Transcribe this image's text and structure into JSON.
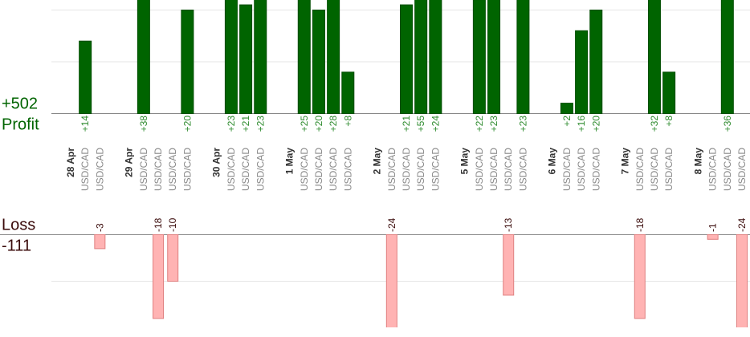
{
  "profit": {
    "label": "Profit",
    "total": 502,
    "total_label": "+502"
  },
  "loss": {
    "label": "Loss",
    "total": -111,
    "total_label": "-111"
  },
  "profit_grid": [
    0,
    10,
    20
  ],
  "loss_grid": [
    0,
    -10
  ],
  "days": [
    {
      "date": "28 Apr",
      "trades": [
        {
          "pair": "USD/CAD",
          "value": 14,
          "value_label": "+14"
        },
        {
          "pair": "USD/CAD",
          "value": -3,
          "value_label": "-3"
        }
      ]
    },
    {
      "date": "29 Apr",
      "trades": [
        {
          "pair": "USD/CAD",
          "value": 38,
          "value_label": "+38"
        },
        {
          "pair": "USD/CAD",
          "value": -18,
          "value_label": "-18"
        },
        {
          "pair": "USD/CAD",
          "value": -10,
          "value_label": "-10"
        },
        {
          "pair": "USD/CAD",
          "value": 20,
          "value_label": "+20"
        }
      ]
    },
    {
      "date": "30 Apr",
      "trades": [
        {
          "pair": "USD/CAD",
          "value": 23,
          "value_label": "+23"
        },
        {
          "pair": "USD/CAD",
          "value": 21,
          "value_label": "+21"
        },
        {
          "pair": "USD/CAD",
          "value": 23,
          "value_label": "+23"
        }
      ]
    },
    {
      "date": "1 May",
      "trades": [
        {
          "pair": "USD/CAD",
          "value": 25,
          "value_label": "+25"
        },
        {
          "pair": "USD/CAD",
          "value": 20,
          "value_label": "+20"
        },
        {
          "pair": "USD/CAD",
          "value": 28,
          "value_label": "+28"
        },
        {
          "pair": "USD/CAD",
          "value": 8,
          "value_label": "+8"
        }
      ]
    },
    {
      "date": "2 May",
      "trades": [
        {
          "pair": "USD/CAD",
          "value": -24,
          "value_label": "-24"
        },
        {
          "pair": "USD/CAD",
          "value": 21,
          "value_label": "+21"
        },
        {
          "pair": "USD/CAD",
          "value": 55,
          "value_label": "+55"
        },
        {
          "pair": "USD/CAD",
          "value": 24,
          "value_label": "+24"
        }
      ]
    },
    {
      "date": "5 May",
      "trades": [
        {
          "pair": "USD/CAD",
          "value": 22,
          "value_label": "+22"
        },
        {
          "pair": "USD/CAD",
          "value": 23,
          "value_label": "+23"
        },
        {
          "pair": "USD/CAD",
          "value": -13,
          "value_label": "-13"
        },
        {
          "pair": "USD/CAD",
          "value": 23,
          "value_label": "+23"
        }
      ]
    },
    {
      "date": "6 May",
      "trades": [
        {
          "pair": "USD/CAD",
          "value": 2,
          "value_label": "+2"
        },
        {
          "pair": "USD/CAD",
          "value": 16,
          "value_label": "+16"
        },
        {
          "pair": "USD/CAD",
          "value": 20,
          "value_label": "+20"
        }
      ]
    },
    {
      "date": "7 May",
      "trades": [
        {
          "pair": "USD/CAD",
          "value": -18,
          "value_label": "-18"
        },
        {
          "pair": "USD/CAD",
          "value": 32,
          "value_label": "+32"
        },
        {
          "pair": "USD/CAD",
          "value": 8,
          "value_label": "+8"
        }
      ]
    },
    {
      "date": "8 May",
      "trades": [
        {
          "pair": "USD/CAD",
          "value": -1,
          "value_label": "-1"
        },
        {
          "pair": "USD/CAD",
          "value": 36,
          "value_label": "+36"
        },
        {
          "pair": "USD/CAD",
          "value": -24,
          "value_label": "-24"
        }
      ]
    }
  ]
}
